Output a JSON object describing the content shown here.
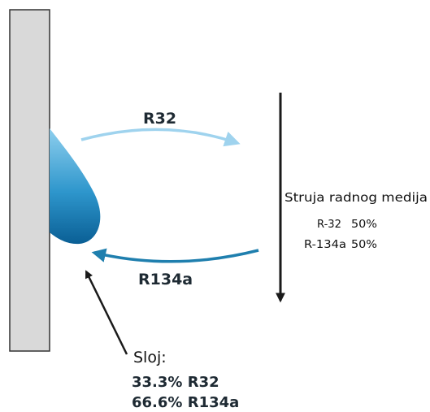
{
  "labels": {
    "r32": "R32",
    "r134a": "R134a",
    "flow_title": "Struja radnog medija",
    "flow_r32": "R-32",
    "flow_r32_pct": "50%",
    "flow_r134a": "R-134a",
    "flow_r134a_pct": "50%",
    "layer_title": "Sloj:",
    "layer_r32": "33.3% R32",
    "layer_r134a": "66.6% R134a"
  },
  "colors": {
    "wall_fill": "#d9d9d9",
    "wall_stroke": "#333333",
    "arrow_r32": "#9fd3ee",
    "arrow_r134a": "#1f7fae",
    "droplet_top": "#8ecfee",
    "droplet_bottom": "#0a5f95",
    "flow_arrow": "#1a1a1a"
  }
}
